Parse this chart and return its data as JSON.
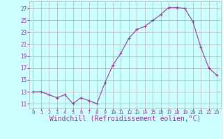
{
  "x": [
    0,
    1,
    2,
    3,
    4,
    5,
    6,
    7,
    8,
    9,
    10,
    11,
    12,
    13,
    14,
    15,
    16,
    17,
    18,
    19,
    20,
    21,
    22,
    23
  ],
  "y": [
    13,
    13,
    12.5,
    12,
    12.5,
    11,
    12,
    11.5,
    11,
    14.5,
    17.5,
    19.5,
    22,
    23.5,
    24,
    25,
    26,
    27.2,
    27.2,
    27,
    24.8,
    20.5,
    17,
    15.8
  ],
  "line_color": "#993399",
  "marker": "+",
  "bg_color": "#ccffff",
  "grid_color": "#b0b0b0",
  "xlabel": "Windchill (Refroidissement éolien,°C)",
  "xlabel_fontsize": 7,
  "ylabel_values": [
    11,
    13,
    15,
    17,
    19,
    21,
    23,
    25,
    27
  ],
  "ylim": [
    10.2,
    28.2
  ],
  "xlim": [
    -0.5,
    23.5
  ],
  "xtick_labels": [
    "0",
    "1",
    "2",
    "3",
    "4",
    "5",
    "6",
    "7",
    "8",
    "9",
    "10",
    "11",
    "12",
    "13",
    "14",
    "15",
    "16",
    "17",
    "18",
    "19",
    "20",
    "21",
    "22",
    "23"
  ],
  "tick_color": "#993399",
  "ytick_fontsize": 5.5,
  "xtick_fontsize": 5
}
